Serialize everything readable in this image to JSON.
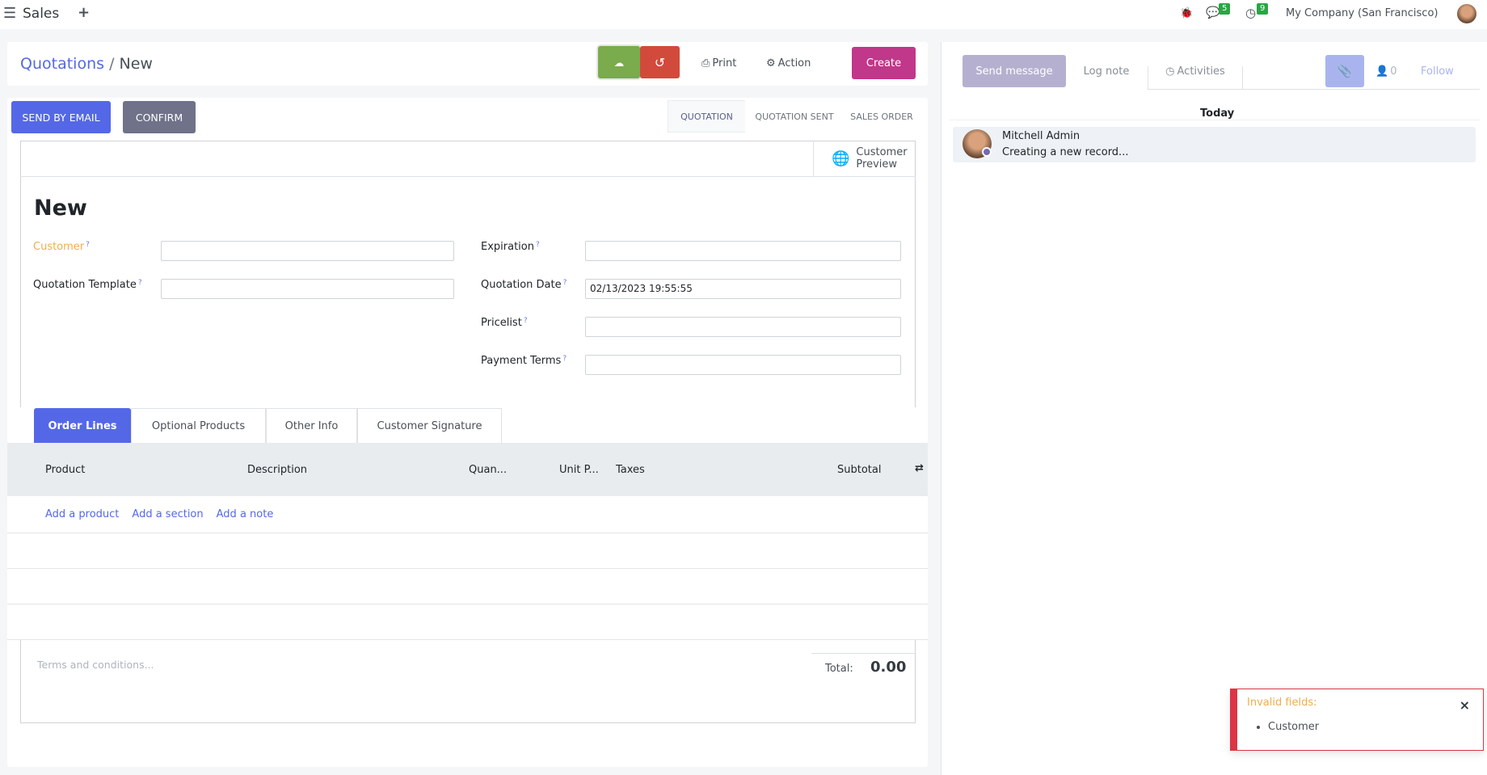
{
  "topbar": {
    "app": "Sales",
    "new_icon": "+",
    "chat_count": "5",
    "activity_count": "9",
    "company": "My Company (San Francisco)"
  },
  "control": {
    "breadcrumb_parent": "Quotations",
    "breadcrumb_sep": "/",
    "breadcrumb_current": "New",
    "print": "Print",
    "action": "Action",
    "create": "Create"
  },
  "form": {
    "send_email": "SEND BY EMAIL",
    "confirm": "CONFIRM",
    "statuses": [
      "QUOTATION",
      "QUOTATION SENT",
      "SALES ORDER"
    ],
    "customer_preview": "Customer Preview",
    "title": "New",
    "fields": {
      "customer": {
        "label": "Customer",
        "value": ""
      },
      "template": {
        "label": "Quotation Template",
        "value": ""
      },
      "expiration": {
        "label": "Expiration",
        "value": ""
      },
      "quotation_date": {
        "label": "Quotation Date",
        "value": "02/13/2023 19:55:55"
      },
      "pricelist": {
        "label": "Pricelist",
        "value": ""
      },
      "payment_terms": {
        "label": "Payment Terms",
        "value": ""
      }
    },
    "help_mark": "?",
    "tabs": [
      "Order Lines",
      "Optional Products",
      "Other Info",
      "Customer Signature"
    ],
    "columns": [
      "Product",
      "Description",
      "Quan...",
      "Unit P...",
      "Taxes",
      "Subtotal"
    ],
    "add_links": [
      "Add a product",
      "Add a section",
      "Add a note"
    ],
    "terms_placeholder": "Terms and conditions...",
    "total_label": "Total:",
    "total_value": "0.00"
  },
  "chatter": {
    "send_message": "Send message",
    "log_note": "Log note",
    "activities": "Activities",
    "followers": "0",
    "follow": "Follow",
    "today": "Today",
    "message": {
      "author": "Mitchell Admin",
      "body": "Creating a new record..."
    }
  },
  "toast": {
    "title": "Invalid fields:",
    "items": [
      "Customer"
    ],
    "close": "×"
  },
  "colors": {
    "primary": "#5468e7",
    "save": "#7aab4c",
    "discard": "#d24a3b",
    "create": "#c1378a",
    "confirm": "#6f7289",
    "required": "#f0ad4e",
    "danger": "#dc3545"
  }
}
